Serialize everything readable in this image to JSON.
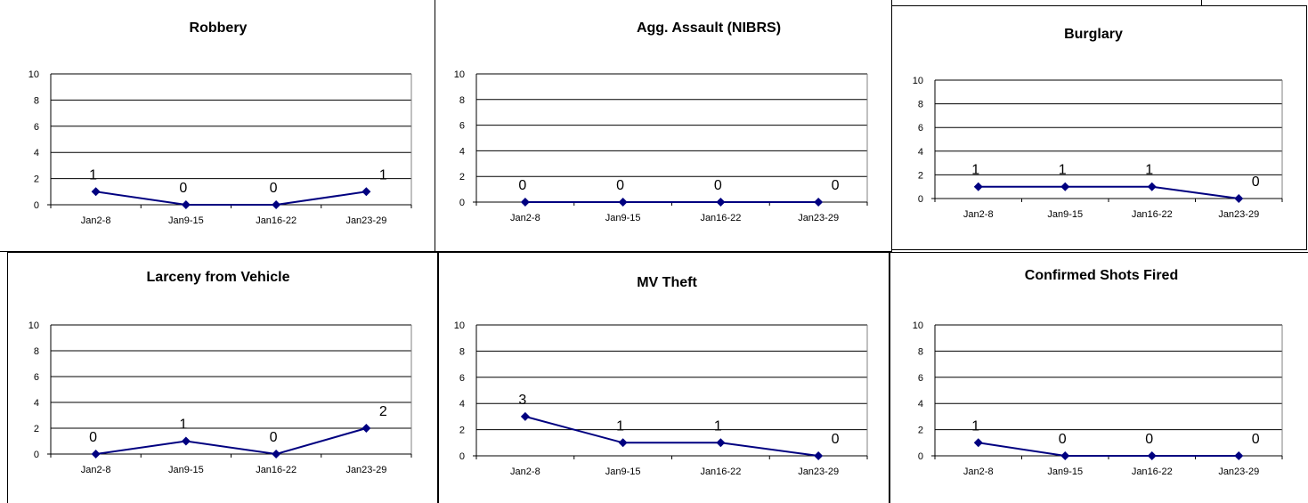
{
  "colors": {
    "series": "#000080",
    "grid": "#000000",
    "frame": "#808080"
  },
  "chart_data": [
    {
      "type": "line",
      "title": "Robbery",
      "categories": [
        "Jan2-8",
        "Jan9-15",
        "Jan16-22",
        "Jan23-29"
      ],
      "values": [
        1,
        0,
        0,
        1
      ],
      "ylim": [
        0,
        10
      ],
      "yticks": [
        "0",
        "2",
        "4",
        "6",
        "8",
        "10"
      ],
      "grid": true
    },
    {
      "type": "line",
      "title": "Agg. Assault (NIBRS)",
      "categories": [
        "Jan2-8",
        "Jan9-15",
        "Jan16-22",
        "Jan23-29"
      ],
      "values": [
        0,
        0,
        0,
        0
      ],
      "ylim": [
        0,
        10
      ],
      "yticks": [
        "0",
        "2",
        "4",
        "6",
        "8",
        "10"
      ],
      "grid": true
    },
    {
      "type": "line",
      "title": "Burglary",
      "categories": [
        "Jan2-8",
        "Jan9-15",
        "Jan16-22",
        "Jan23-29"
      ],
      "values": [
        1,
        1,
        1,
        0
      ],
      "ylim": [
        0,
        10
      ],
      "yticks": [
        "0",
        "2",
        "4",
        "6",
        "8",
        "10"
      ],
      "grid": true
    },
    {
      "type": "line",
      "title": "Larceny from Vehicle",
      "categories": [
        "Jan2-8",
        "Jan9-15",
        "Jan16-22",
        "Jan23-29"
      ],
      "values": [
        0,
        1,
        0,
        2
      ],
      "ylim": [
        0,
        10
      ],
      "yticks": [
        "0",
        "2",
        "4",
        "6",
        "8",
        "10"
      ],
      "grid": true
    },
    {
      "type": "line",
      "title": "MV Theft",
      "categories": [
        "Jan2-8",
        "Jan9-15",
        "Jan16-22",
        "Jan23-29"
      ],
      "values": [
        3,
        1,
        1,
        0
      ],
      "ylim": [
        0,
        10
      ],
      "yticks": [
        "0",
        "2",
        "4",
        "6",
        "8",
        "10"
      ],
      "grid": true
    },
    {
      "type": "line",
      "title": "Confirmed Shots Fired",
      "categories": [
        "Jan2-8",
        "Jan9-15",
        "Jan16-22",
        "Jan23-29"
      ],
      "values": [
        1,
        0,
        0,
        0
      ],
      "ylim": [
        0,
        10
      ],
      "yticks": [
        "0",
        "2",
        "4",
        "6",
        "8",
        "10"
      ],
      "grid": true
    }
  ]
}
